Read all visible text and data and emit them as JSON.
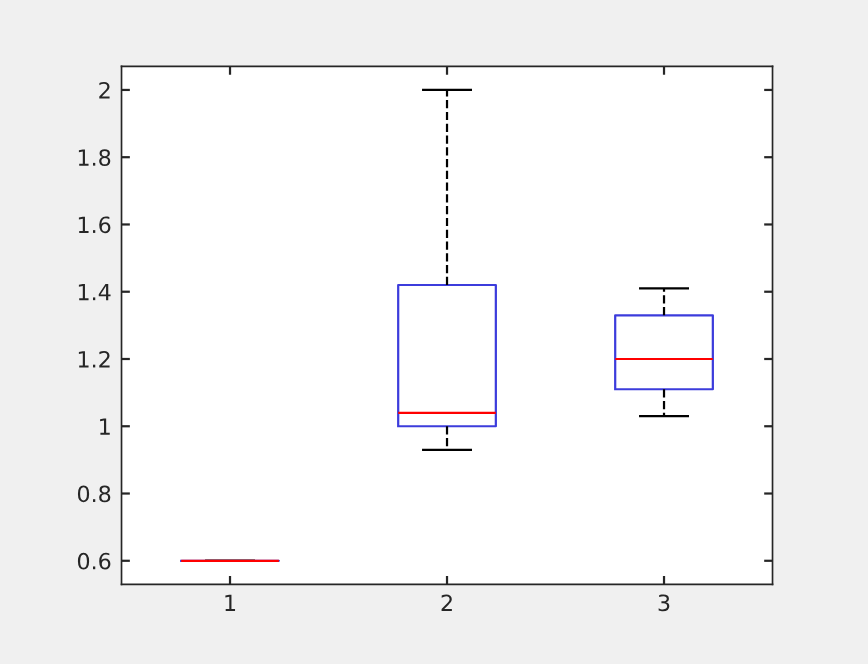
{
  "chart_data": {
    "type": "box",
    "categories": [
      "1",
      "2",
      "3"
    ],
    "boxes": [
      {
        "low": 0.6,
        "q1": 0.6,
        "median": 0.6,
        "q3": 0.6,
        "high": 0.6
      },
      {
        "low": 0.93,
        "q1": 1.0,
        "median": 1.04,
        "q3": 1.42,
        "high": 2.0
      },
      {
        "low": 1.03,
        "q1": 1.11,
        "median": 1.2,
        "q3": 1.33,
        "high": 1.41
      }
    ],
    "color": "#3c3cdc",
    "ylim": [
      0.53,
      2.07
    ],
    "yticks": [
      0.6,
      0.8,
      1,
      1.2,
      1.4,
      1.6,
      1.8,
      2
    ],
    "grid": false,
    "line_style": "dashed"
  }
}
